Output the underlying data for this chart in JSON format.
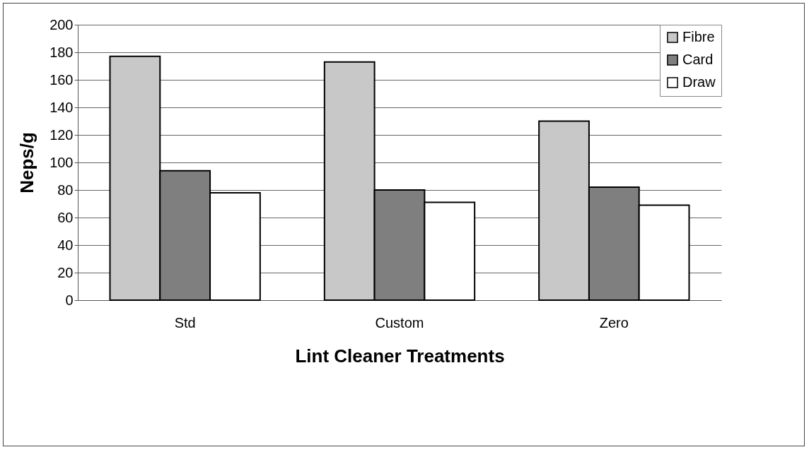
{
  "chart_data": {
    "type": "bar",
    "xlabel": "Lint Cleaner Treatments",
    "ylabel": "Neps/g",
    "categories": [
      "Std",
      "Custom",
      "Zero"
    ],
    "series": [
      {
        "name": "Fibre",
        "color": "#c8c8c8",
        "values": [
          177,
          173,
          130
        ]
      },
      {
        "name": "Card",
        "color": "#7f7f7f",
        "values": [
          94,
          80,
          82
        ]
      },
      {
        "name": "Draw",
        "color": "#ffffff",
        "values": [
          78,
          71,
          69
        ]
      }
    ],
    "ylim": [
      0,
      200
    ],
    "yticks": [
      0,
      20,
      40,
      60,
      80,
      100,
      120,
      140,
      160,
      180,
      200
    ],
    "grid": "y",
    "legend": "top right"
  }
}
